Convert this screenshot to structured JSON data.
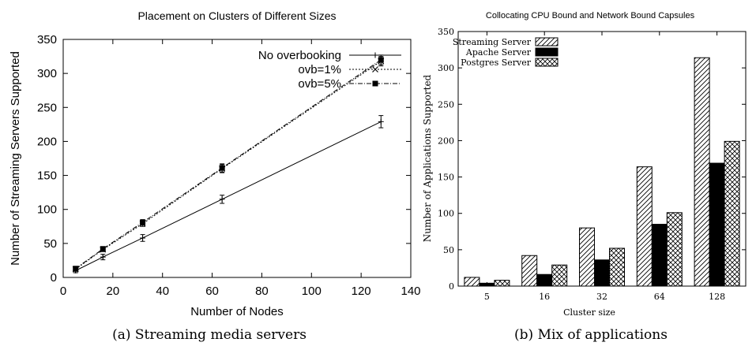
{
  "chart_data": [
    {
      "type": "line",
      "title": "Placement on Clusters of Different Sizes",
      "xlabel": "Number of Nodes",
      "ylabel": "Number of Streaming Servers Supported",
      "xlim": [
        0,
        140
      ],
      "ylim": [
        0,
        350
      ],
      "xticks": [
        0,
        20,
        40,
        60,
        80,
        100,
        120,
        140
      ],
      "yticks": [
        0,
        50,
        100,
        150,
        200,
        250,
        300,
        350
      ],
      "grid": false,
      "legend_position": "top-right",
      "caption": "(a) Streaming media servers",
      "x": [
        5,
        16,
        32,
        64,
        128
      ],
      "series": [
        {
          "name": "No overbooking",
          "values": [
            10,
            30,
            58,
            115,
            229
          ],
          "errors": [
            3,
            4,
            5,
            6,
            9
          ],
          "line": "solid",
          "marker": "plus"
        },
        {
          "name": "ovb=1%",
          "values": [
            12,
            41,
            79,
            160,
            318
          ],
          "errors": [
            3,
            3,
            4,
            6,
            7
          ],
          "line": "dotted",
          "marker": "cross"
        },
        {
          "name": "ovb=5%",
          "values": [
            13,
            42,
            81,
            161,
            320
          ],
          "errors": [
            3,
            3,
            4,
            6,
            7
          ],
          "line": "dashdot",
          "marker": "square"
        }
      ]
    },
    {
      "type": "bar",
      "title": "Collocating CPU Bound and Network Bound Capsules",
      "xlabel": "Cluster size",
      "ylabel": "Number of Applications Supported",
      "ylim": [
        0,
        350
      ],
      "yticks": [
        0,
        50,
        100,
        150,
        200,
        250,
        300,
        350
      ],
      "grid": false,
      "legend_position": "top-left",
      "caption": "(b) Mix of applications",
      "categories": [
        "5",
        "16",
        "32",
        "64",
        "128"
      ],
      "series": [
        {
          "name": "Streaming Server",
          "values": [
            12,
            42,
            80,
            164,
            314
          ],
          "pattern": "diagonal"
        },
        {
          "name": "Apache Server",
          "values": [
            4,
            16,
            36,
            85,
            169
          ],
          "pattern": "solid"
        },
        {
          "name": "Postgres Server",
          "values": [
            8,
            29,
            52,
            101,
            199
          ],
          "pattern": "crosshatch"
        }
      ]
    }
  ]
}
